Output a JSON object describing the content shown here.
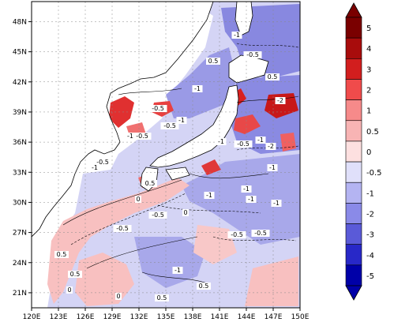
{
  "map": {
    "lon_range": [
      120,
      150
    ],
    "lat_range": [
      19.5,
      50
    ],
    "lon_ticks": [
      "120E",
      "123E",
      "126E",
      "129E",
      "132E",
      "135E",
      "138E",
      "141E",
      "144E",
      "147E",
      "150E"
    ],
    "lat_ticks": [
      "21N",
      "24N",
      "27N",
      "30N",
      "33N",
      "36N",
      "39N",
      "42N",
      "45N",
      "48N"
    ],
    "contour_labels": [
      "0",
      "0",
      "0.5",
      "-0.5",
      "-1",
      "-1",
      "-0.5",
      "0",
      "-1",
      "-0.5",
      "-1",
      "-2",
      "-0.5",
      "0.5",
      "-1",
      "-0.5",
      "-1",
      "0.5",
      "0.5",
      "0",
      "-0.5",
      "-1",
      "-0.5",
      "0.5",
      "-2",
      "-1",
      "-1",
      "-0.5",
      "0.5",
      "-1",
      "-0.5",
      "0.5",
      "-1",
      "-0.5",
      "-1",
      "-1"
    ]
  },
  "colorbar": {
    "labels": [
      "5",
      "4",
      "3",
      "2",
      "1",
      "0.5",
      "0",
      "-0.5",
      "-1",
      "-2",
      "-3",
      "-4",
      "-5"
    ],
    "colors": [
      "#7a0000",
      "#a80c0c",
      "#d21e1e",
      "#f04b4b",
      "#f68a8a",
      "#f8b4b4",
      "#fde0e0",
      "#e0e0fa",
      "#b4b4f2",
      "#8a8ae8",
      "#5a5ad8",
      "#2828c8",
      "#0000a8"
    ]
  }
}
